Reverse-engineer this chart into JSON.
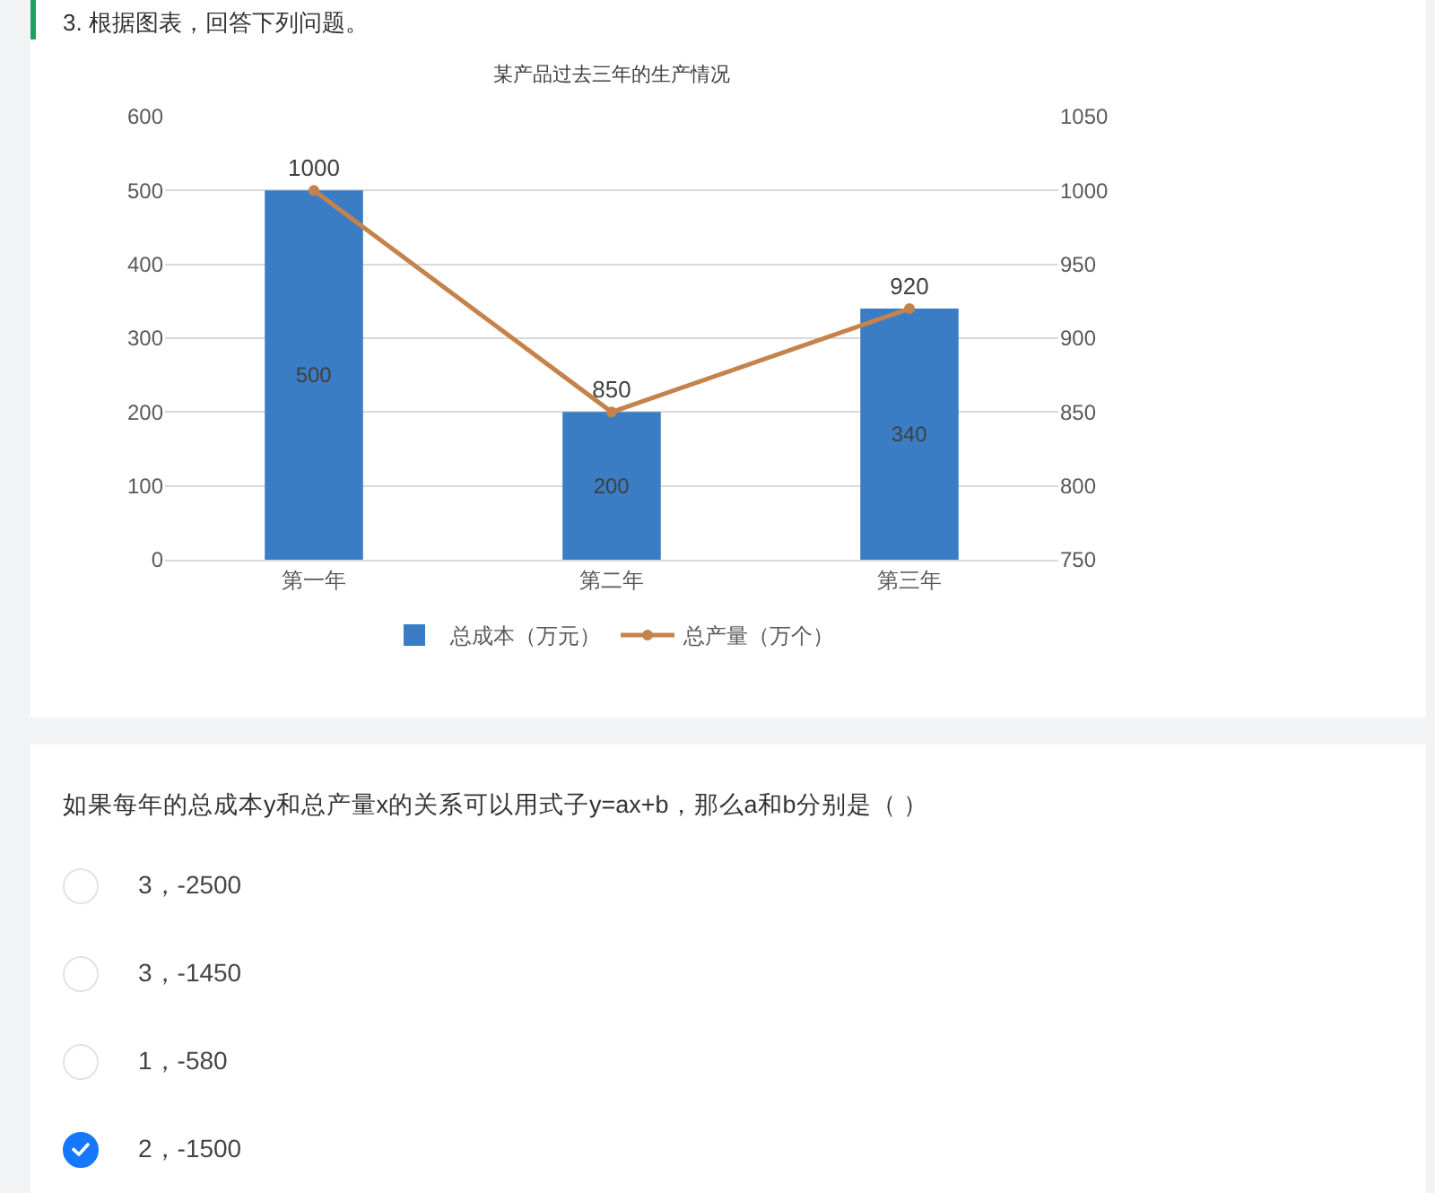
{
  "chart_data": {
    "type": "bar",
    "title": "某产品过去三年的生产情况",
    "categories": [
      "第一年",
      "第二年",
      "第三年"
    ],
    "series": [
      {
        "name": "总成本（万元）",
        "color": "#3b7dc5",
        "values": [
          500,
          200,
          340
        ]
      },
      {
        "name": "总产量（万个）",
        "type": "line",
        "axis": "y2",
        "color": "#c5834c",
        "values": [
          1000,
          850,
          920
        ]
      }
    ],
    "ylim": [
      0,
      600
    ],
    "yticks": [
      0,
      100,
      200,
      300,
      400,
      500,
      600
    ],
    "y2lim": [
      750,
      1050
    ],
    "y2ticks": [
      750,
      800,
      850,
      900,
      950,
      1000,
      1050
    ],
    "grid": "y",
    "legend": "bottom",
    "marker": "circle",
    "data_labels": true,
    "annotations": [
      "3.  根据图表，回答下列问题。",
      "如果每年的总成本y和总产量x的关系可以用式子y=ax+b，那么a和b分别是（ ）",
      "3，-2500",
      "3，-1450",
      "1，-580",
      "2，-1500"
    ]
  }
}
